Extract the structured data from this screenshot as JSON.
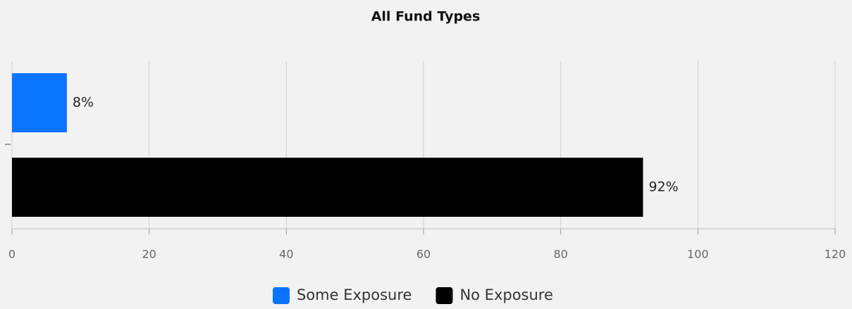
{
  "chart_data": {
    "type": "bar",
    "orientation": "horizontal",
    "title": "All Fund Types",
    "categories": [
      null
    ],
    "series": [
      {
        "name": "Some Exposure",
        "color": "#0a74ff",
        "values": [
          8
        ],
        "value_labels": [
          "8%"
        ]
      },
      {
        "name": "No Exposure",
        "color": "#000000",
        "values": [
          92
        ],
        "value_labels": [
          "92%"
        ]
      }
    ],
    "xlim": [
      0,
      120
    ],
    "xticks": [
      0,
      20,
      40,
      60,
      80,
      100,
      120
    ],
    "grid": true,
    "legend": "bottom"
  }
}
